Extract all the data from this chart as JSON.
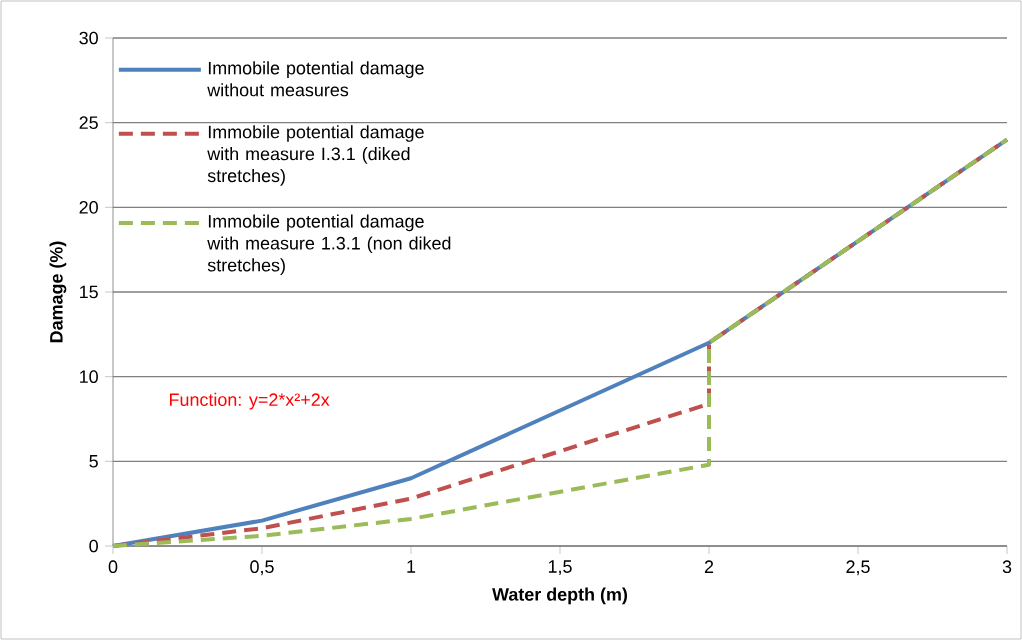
{
  "chart_data": {
    "type": "line",
    "xlabel": "Water depth (m)",
    "ylabel": "Damage (%)",
    "xlim": [
      0,
      3
    ],
    "ylim": [
      0,
      30
    ],
    "xticks": [
      0,
      {
        "value": 0.5,
        "label": "0,5"
      },
      1,
      {
        "value": 1.5,
        "label": "1,5"
      },
      2,
      {
        "value": 2.5,
        "label": "2,5"
      },
      3
    ],
    "yticks": [
      0,
      5,
      10,
      15,
      20,
      25,
      30
    ],
    "grid": "y",
    "legend": "top left",
    "marker": "none",
    "annotations": [
      "Function: y=2*x²+2x"
    ],
    "series": [
      {
        "name": "Immobile potential damage without measures",
        "color": "#4f81bd",
        "line_style": "solid",
        "x": [
          0,
          0.5,
          1,
          2,
          3
        ],
        "values": [
          0,
          1.5,
          4,
          12,
          24
        ]
      },
      {
        "name": "Immobile potential damage with measure I.3.1 (diked stretches)",
        "color": "#c0504d",
        "line_style": "dashed",
        "x": [
          0,
          0.5,
          1,
          2,
          2,
          3
        ],
        "values": [
          0,
          1.05,
          2.8,
          8.4,
          12,
          24
        ]
      },
      {
        "name": "Immobile potential damage with measure 1.3.1 (non diked stretches)",
        "color": "#9bbb59",
        "line_style": "dashed",
        "x": [
          0,
          0.5,
          1,
          2,
          2,
          3
        ],
        "values": [
          0,
          0.6,
          1.6,
          4.8,
          12,
          24
        ]
      }
    ]
  }
}
